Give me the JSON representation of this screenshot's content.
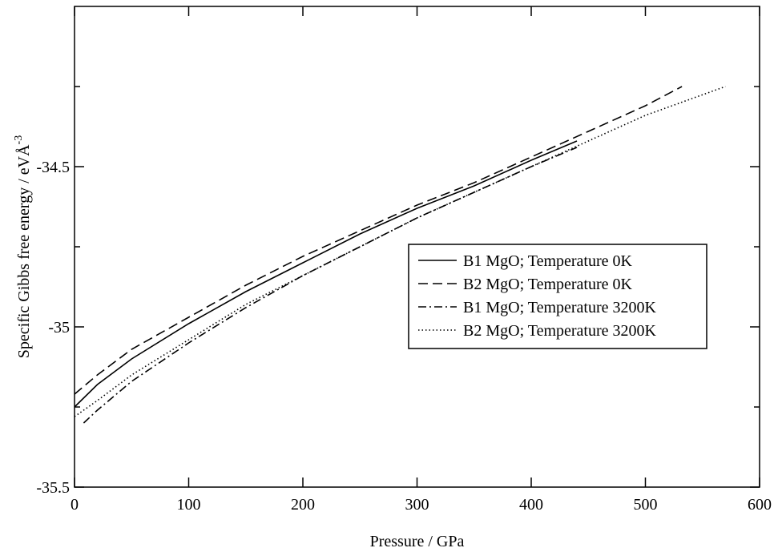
{
  "chart_data": {
    "type": "line",
    "xlabel": "Pressure / GPa",
    "ylabel_main": "Specific Gibbs free energy / eV",
    "ylabel_unit": "Å",
    "ylabel_exp": "-3",
    "xlim": [
      0,
      600
    ],
    "ylim": [
      -35.5,
      -34.0
    ],
    "x_ticks": [
      0,
      100,
      200,
      300,
      400,
      500,
      600
    ],
    "x_tick_labels": [
      "0",
      "100",
      "200",
      "300",
      "400",
      "500",
      "600"
    ],
    "y_ticks": [
      -35.5,
      -35.0,
      -34.5
    ],
    "y_tick_labels": [
      "-35.5",
      "-35",
      "-34.5"
    ],
    "y_minor_ticks": [
      -35.25,
      -34.75,
      -34.25
    ],
    "grid": false,
    "legend_position": "right",
    "series": [
      {
        "name": "B1 MgO; Temperature 0K",
        "dash": "solid",
        "x": [
          0,
          20,
          50,
          100,
          150,
          200,
          250,
          300,
          350,
          400,
          440
        ],
        "y": [
          -35.25,
          -35.18,
          -35.1,
          -34.99,
          -34.89,
          -34.8,
          -34.71,
          -34.63,
          -34.56,
          -34.48,
          -34.42
        ]
      },
      {
        "name": "B2 MgO; Temperature 0K",
        "dash": "dashed",
        "x": [
          0,
          20,
          50,
          100,
          150,
          200,
          250,
          300,
          350,
          400,
          450,
          500,
          532
        ],
        "y": [
          -35.21,
          -35.15,
          -35.07,
          -34.97,
          -34.87,
          -34.78,
          -34.7,
          -34.62,
          -34.55,
          -34.47,
          -34.39,
          -34.31,
          -34.25
        ]
      },
      {
        "name": "B1 MgO; Temperature 3200K",
        "dash": "dashdot",
        "x": [
          8,
          20,
          50,
          100,
          150,
          200,
          250,
          300,
          350,
          400,
          440
        ],
        "y": [
          -35.3,
          -35.26,
          -35.17,
          -35.05,
          -34.94,
          -34.84,
          -34.75,
          -34.66,
          -34.58,
          -34.5,
          -34.44
        ]
      },
      {
        "name": "B2 MgO; Temperature 3200K",
        "dash": "dotted",
        "x": [
          0,
          20,
          50,
          100,
          150,
          200,
          250,
          300,
          350,
          400,
          450,
          500,
          570
        ],
        "y": [
          -35.28,
          -35.23,
          -35.15,
          -35.04,
          -34.93,
          -34.84,
          -34.75,
          -34.66,
          -34.58,
          -34.5,
          -34.42,
          -34.34,
          -34.25
        ]
      }
    ]
  }
}
